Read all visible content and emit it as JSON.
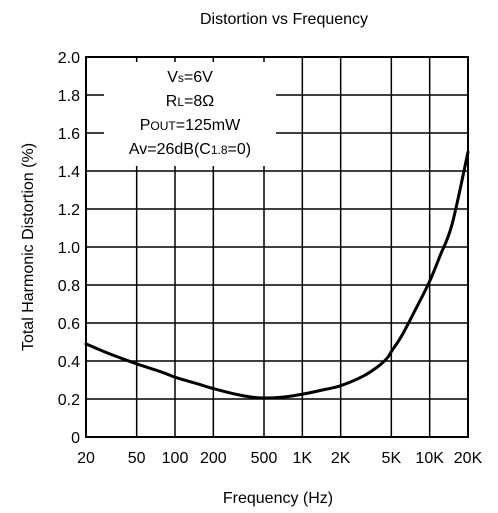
{
  "chart_data": {
    "type": "line",
    "title": "Distortion vs  Frequency",
    "xlabel": "Frequency (Hz)",
    "ylabel": "Total Harmonic Distortion (%)",
    "x_scale": "log",
    "xlim": [
      20,
      20000
    ],
    "ylim": [
      0,
      2.0
    ],
    "grid": true,
    "x_ticks": [
      {
        "value": 20,
        "label": "20"
      },
      {
        "value": 50,
        "label": "50"
      },
      {
        "value": 100,
        "label": "100"
      },
      {
        "value": 200,
        "label": "200"
      },
      {
        "value": 500,
        "label": "500"
      },
      {
        "value": 1000,
        "label": "1K"
      },
      {
        "value": 2000,
        "label": "2K"
      },
      {
        "value": 5000,
        "label": "5K"
      },
      {
        "value": 10000,
        "label": "10K"
      },
      {
        "value": 20000,
        "label": "20K"
      }
    ],
    "y_ticks": [
      {
        "value": 0,
        "label": "0"
      },
      {
        "value": 0.2,
        "label": "0.2"
      },
      {
        "value": 0.4,
        "label": "0.4"
      },
      {
        "value": 0.6,
        "label": "0.6"
      },
      {
        "value": 0.8,
        "label": "0.8"
      },
      {
        "value": 1.0,
        "label": "1.0"
      },
      {
        "value": 1.2,
        "label": "1.2"
      },
      {
        "value": 1.4,
        "label": "1.4"
      },
      {
        "value": 1.6,
        "label": "1.6"
      },
      {
        "value": 1.8,
        "label": "1.8"
      },
      {
        "value": 2.0,
        "label": "2.0"
      }
    ],
    "annotations": [
      {
        "parts": [
          {
            "t": "V"
          },
          {
            "t": "s",
            "sub": true
          },
          {
            "t": "=6V"
          }
        ]
      },
      {
        "parts": [
          {
            "t": "R"
          },
          {
            "t": "L",
            "sub": true
          },
          {
            "t": "=8Ω"
          }
        ]
      },
      {
        "parts": [
          {
            "t": "P"
          },
          {
            "t": "OUT",
            "sub": true
          },
          {
            "t": "=125mW"
          }
        ]
      },
      {
        "parts": [
          {
            "t": "Av=26dB(C"
          },
          {
            "t": "1.8",
            "sub": true
          },
          {
            "t": "=0)"
          }
        ]
      }
    ],
    "series": [
      {
        "x": [
          20,
          30,
          50,
          80,
          100,
          150,
          200,
          300,
          400,
          500,
          700,
          1000,
          1500,
          2000,
          3000,
          4000,
          4700,
          5000,
          6000,
          8000,
          10000,
          12000,
          15000,
          20000
        ],
        "y": [
          0.49,
          0.44,
          0.385,
          0.34,
          0.315,
          0.28,
          0.255,
          0.225,
          0.21,
          0.205,
          0.21,
          0.225,
          0.25,
          0.27,
          0.32,
          0.375,
          0.42,
          0.45,
          0.53,
          0.69,
          0.82,
          0.95,
          1.12,
          1.5
        ]
      }
    ]
  }
}
